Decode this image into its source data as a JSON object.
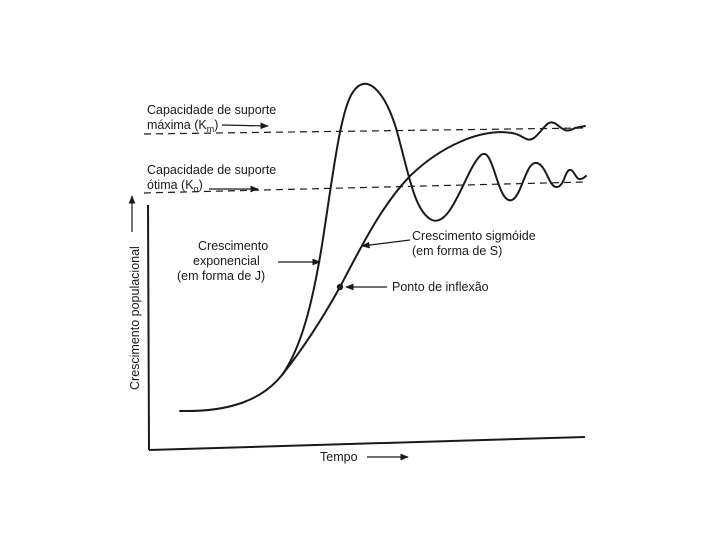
{
  "labels": {
    "max_capacity_line1": "Capacidade de suporte",
    "max_capacity_line2": "máxima (K",
    "max_capacity_sub": "m",
    "opt_capacity_line1": "Capacidade de suporte",
    "opt_capacity_line2": "ótima (K",
    "opt_capacity_sub": "o",
    "exponential_line1": "Crescimento",
    "exponential_line2": "exponencial",
    "exponential_line3": "(em forma de J)",
    "sigmoid_line1": "Crescimento sigmóide",
    "sigmoid_line2": "(em forma de S)",
    "inflection": "Ponto de inflexão",
    "y_axis": "Crescimento populacional",
    "x_axis": "Tempo"
  }
}
